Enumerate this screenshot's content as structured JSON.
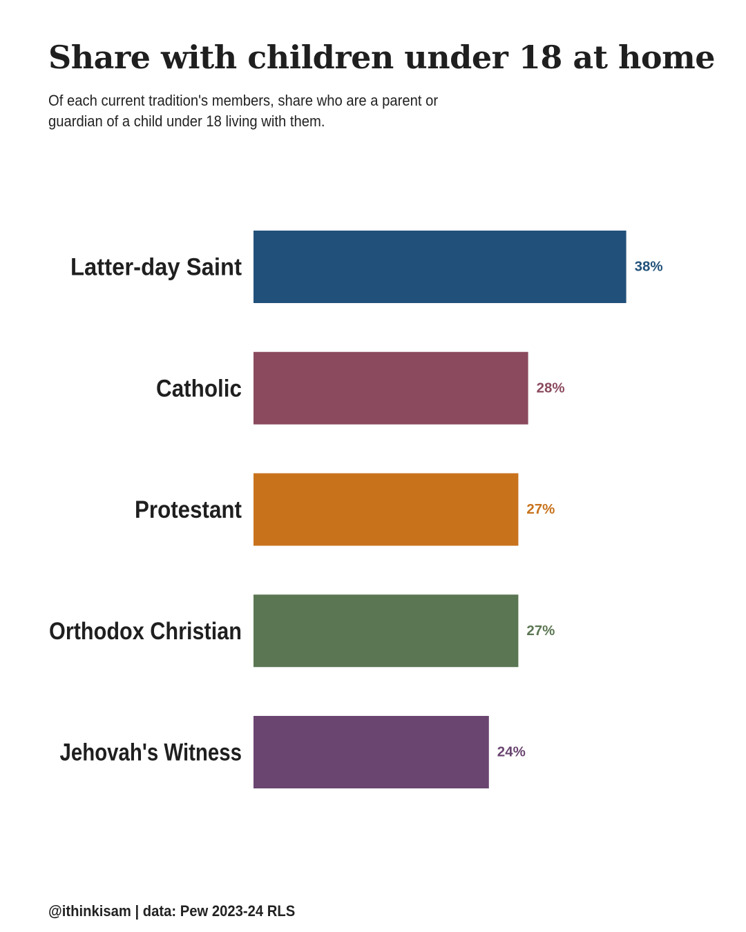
{
  "title": "Share with children under 18 at home",
  "subtitle": "Of each current tradition's members, share who are a parent or guardian of a child under 18 living with them.",
  "footer": "@ithinkisam | data: Pew 2023-24 RLS",
  "chart_data": {
    "type": "bar",
    "orientation": "horizontal",
    "categories": [
      "Latter-day Saint",
      "Catholic",
      "Protestant",
      "Orthodox Christian",
      "Jehovah's Witness"
    ],
    "values": [
      38,
      28,
      27,
      27,
      24
    ],
    "data_labels": [
      "38%",
      "28%",
      "27%",
      "27%",
      "24%"
    ],
    "colors": [
      "#21517a",
      "#8b4a5e",
      "#c8721c",
      "#5b7652",
      "#6a4570"
    ],
    "xlim": [
      0,
      53
    ],
    "grid": false,
    "legend": "none"
  }
}
